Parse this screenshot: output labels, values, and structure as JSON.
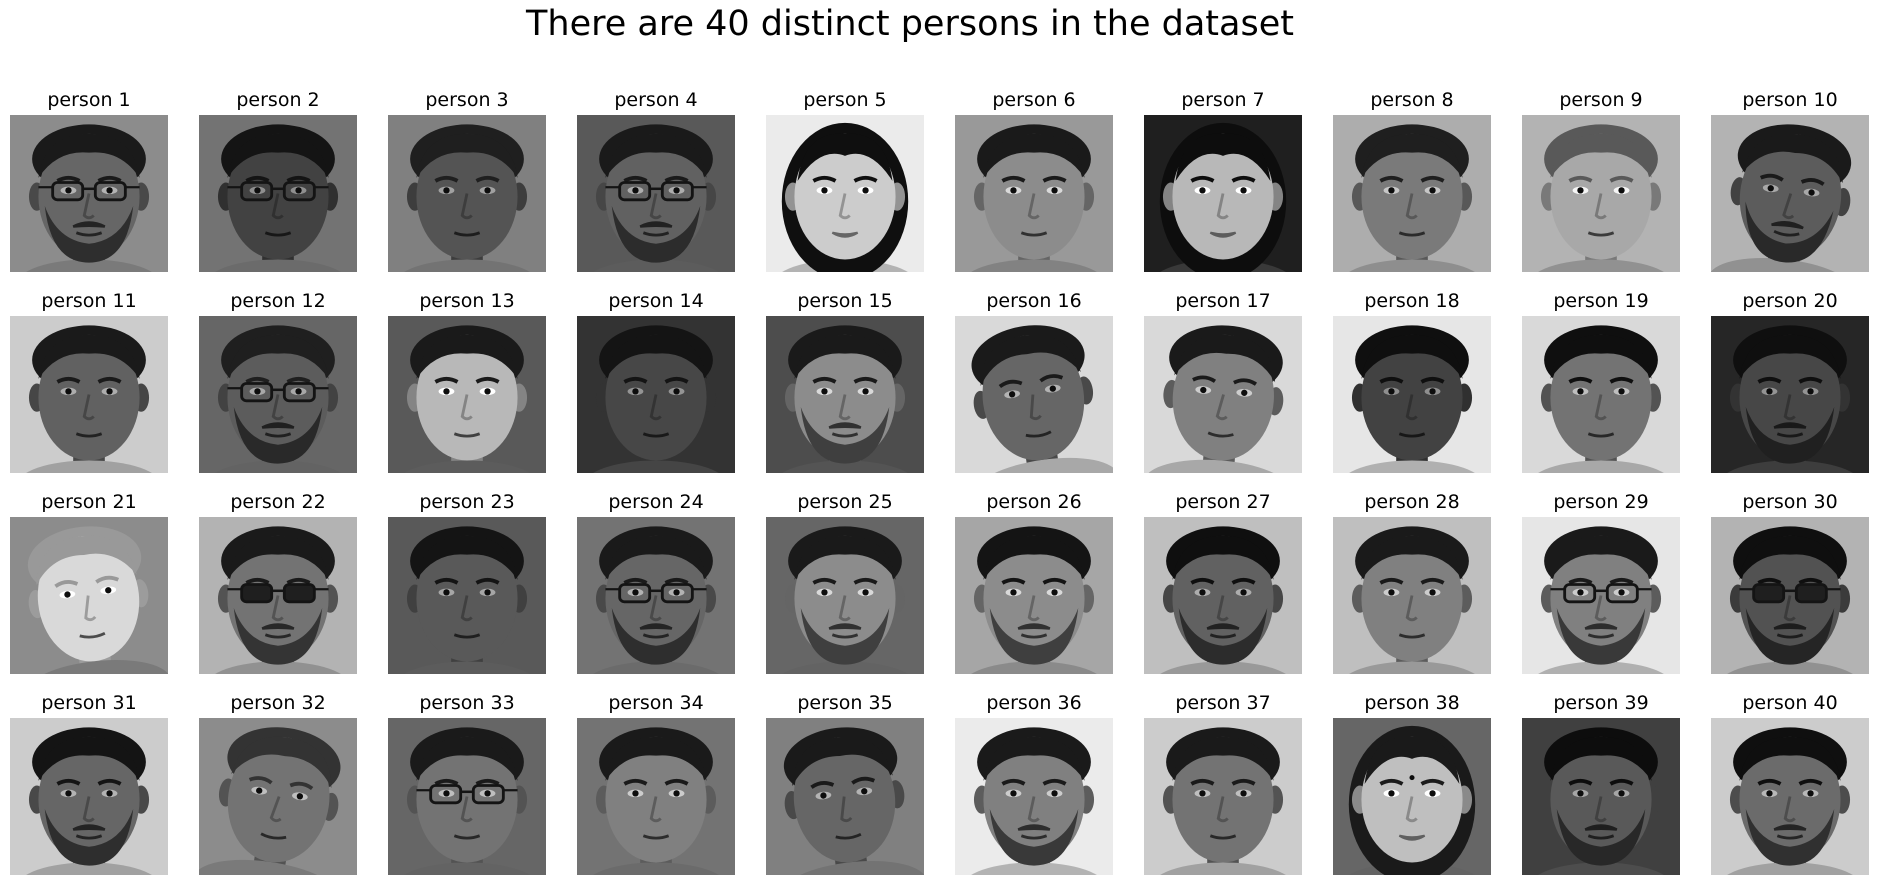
{
  "title": "There are 40 distinct persons in the dataset",
  "grid": {
    "rows": 4,
    "cols": 10
  },
  "persons": [
    {
      "label": "person 1",
      "bg": 0.55,
      "skin": 0.4,
      "hair": 0.1,
      "glasses": true,
      "beard": true,
      "female": false,
      "tilt": 0,
      "accessory": "none"
    },
    {
      "label": "person 2",
      "bg": 0.45,
      "skin": 0.26,
      "hair": 0.08,
      "glasses": true,
      "beard": false,
      "female": false,
      "tilt": 0,
      "accessory": "none"
    },
    {
      "label": "person 3",
      "bg": 0.5,
      "skin": 0.33,
      "hair": 0.12,
      "glasses": false,
      "beard": false,
      "female": false,
      "tilt": 0,
      "accessory": "none"
    },
    {
      "label": "person 4",
      "bg": 0.35,
      "skin": 0.38,
      "hair": 0.1,
      "glasses": true,
      "beard": true,
      "female": false,
      "tilt": 0,
      "accessory": "none"
    },
    {
      "label": "person 5",
      "bg": 0.92,
      "skin": 0.8,
      "hair": 0.06,
      "glasses": false,
      "beard": false,
      "female": true,
      "tilt": 0,
      "accessory": "none"
    },
    {
      "label": "person 6",
      "bg": 0.6,
      "skin": 0.55,
      "hair": 0.1,
      "glasses": false,
      "beard": false,
      "female": false,
      "tilt": 0,
      "accessory": "none"
    },
    {
      "label": "person 7",
      "bg": 0.12,
      "skin": 0.72,
      "hair": 0.05,
      "glasses": false,
      "beard": false,
      "female": true,
      "tilt": 0,
      "accessory": "none"
    },
    {
      "label": "person 8",
      "bg": 0.68,
      "skin": 0.48,
      "hair": 0.12,
      "glasses": false,
      "beard": false,
      "female": false,
      "tilt": 0,
      "accessory": "none"
    },
    {
      "label": "person 9",
      "bg": 0.7,
      "skin": 0.66,
      "hair": 0.35,
      "glasses": false,
      "beard": false,
      "female": false,
      "tilt": 0,
      "accessory": "none"
    },
    {
      "label": "person 10",
      "bg": 0.7,
      "skin": 0.36,
      "hair": 0.1,
      "glasses": false,
      "beard": true,
      "female": false,
      "tilt": 6,
      "accessory": "none"
    },
    {
      "label": "person 11",
      "bg": 0.8,
      "skin": 0.38,
      "hair": 0.1,
      "glasses": false,
      "beard": false,
      "female": false,
      "tilt": 0,
      "accessory": "none"
    },
    {
      "label": "person 12",
      "bg": 0.4,
      "skin": 0.36,
      "hair": 0.12,
      "glasses": true,
      "beard": true,
      "female": false,
      "tilt": 0,
      "accessory": "none"
    },
    {
      "label": "person 13",
      "bg": 0.35,
      "skin": 0.72,
      "hair": 0.1,
      "glasses": false,
      "beard": false,
      "female": false,
      "tilt": 0,
      "accessory": "none"
    },
    {
      "label": "person 14",
      "bg": 0.2,
      "skin": 0.28,
      "hair": 0.08,
      "glasses": false,
      "beard": false,
      "female": false,
      "tilt": 0,
      "accessory": "none"
    },
    {
      "label": "person 15",
      "bg": 0.3,
      "skin": 0.55,
      "hair": 0.1,
      "glasses": false,
      "beard": true,
      "female": false,
      "tilt": 0,
      "accessory": "none"
    },
    {
      "label": "person 16",
      "bg": 0.85,
      "skin": 0.4,
      "hair": 0.1,
      "glasses": false,
      "beard": false,
      "female": false,
      "tilt": -8,
      "accessory": "none"
    },
    {
      "label": "person 17",
      "bg": 0.85,
      "skin": 0.5,
      "hair": 0.1,
      "glasses": false,
      "beard": false,
      "female": false,
      "tilt": 4,
      "accessory": "none"
    },
    {
      "label": "person 18",
      "bg": 0.9,
      "skin": 0.26,
      "hair": 0.06,
      "glasses": false,
      "beard": false,
      "female": false,
      "tilt": 0,
      "accessory": "none"
    },
    {
      "label": "person 19",
      "bg": 0.85,
      "skin": 0.45,
      "hair": 0.06,
      "glasses": false,
      "beard": false,
      "female": false,
      "tilt": 0,
      "accessory": "none"
    },
    {
      "label": "person 20",
      "bg": 0.15,
      "skin": 0.28,
      "hair": 0.06,
      "glasses": false,
      "beard": true,
      "female": false,
      "tilt": 0,
      "accessory": "none"
    },
    {
      "label": "person 21",
      "bg": 0.55,
      "skin": 0.85,
      "hair": 0.6,
      "glasses": false,
      "beard": false,
      "female": false,
      "tilt": -6,
      "accessory": "none"
    },
    {
      "label": "person 22",
      "bg": 0.7,
      "skin": 0.45,
      "hair": 0.1,
      "glasses": true,
      "beard": true,
      "female": false,
      "tilt": 0,
      "accessory": "sunglasses"
    },
    {
      "label": "person 23",
      "bg": 0.35,
      "skin": 0.35,
      "hair": 0.08,
      "glasses": false,
      "beard": false,
      "female": false,
      "tilt": 0,
      "accessory": "none"
    },
    {
      "label": "person 24",
      "bg": 0.45,
      "skin": 0.4,
      "hair": 0.1,
      "glasses": true,
      "beard": true,
      "female": false,
      "tilt": 0,
      "accessory": "none"
    },
    {
      "label": "person 25",
      "bg": 0.4,
      "skin": 0.55,
      "hair": 0.1,
      "glasses": false,
      "beard": true,
      "female": false,
      "tilt": 0,
      "accessory": "none"
    },
    {
      "label": "person 26",
      "bg": 0.65,
      "skin": 0.55,
      "hair": 0.08,
      "glasses": false,
      "beard": true,
      "female": false,
      "tilt": 0,
      "accessory": "none"
    },
    {
      "label": "person 27",
      "bg": 0.75,
      "skin": 0.38,
      "hair": 0.06,
      "glasses": false,
      "beard": true,
      "female": false,
      "tilt": 0,
      "accessory": "none"
    },
    {
      "label": "person 28",
      "bg": 0.75,
      "skin": 0.5,
      "hair": 0.1,
      "glasses": false,
      "beard": false,
      "female": false,
      "tilt": 0,
      "accessory": "none"
    },
    {
      "label": "person 29",
      "bg": 0.9,
      "skin": 0.5,
      "hair": 0.1,
      "glasses": true,
      "beard": true,
      "female": false,
      "tilt": 0,
      "accessory": "none"
    },
    {
      "label": "person 30",
      "bg": 0.7,
      "skin": 0.32,
      "hair": 0.06,
      "glasses": true,
      "beard": true,
      "female": false,
      "tilt": 0,
      "accessory": "sunglasses"
    },
    {
      "label": "person 31",
      "bg": 0.8,
      "skin": 0.4,
      "hair": 0.08,
      "glasses": false,
      "beard": true,
      "female": false,
      "tilt": 0,
      "accessory": "none"
    },
    {
      "label": "person 32",
      "bg": 0.55,
      "skin": 0.45,
      "hair": 0.2,
      "glasses": false,
      "beard": false,
      "female": false,
      "tilt": 8,
      "accessory": "none"
    },
    {
      "label": "person 33",
      "bg": 0.4,
      "skin": 0.45,
      "hair": 0.1,
      "glasses": true,
      "beard": false,
      "female": false,
      "tilt": 0,
      "accessory": "none"
    },
    {
      "label": "person 34",
      "bg": 0.45,
      "skin": 0.5,
      "hair": 0.1,
      "glasses": false,
      "beard": false,
      "female": false,
      "tilt": 0,
      "accessory": "none"
    },
    {
      "label": "person 35",
      "bg": 0.5,
      "skin": 0.4,
      "hair": 0.1,
      "glasses": false,
      "beard": false,
      "female": false,
      "tilt": -6,
      "accessory": "none"
    },
    {
      "label": "person 36",
      "bg": 0.92,
      "skin": 0.5,
      "hair": 0.1,
      "glasses": false,
      "beard": true,
      "female": false,
      "tilt": 0,
      "accessory": "none"
    },
    {
      "label": "person 37",
      "bg": 0.8,
      "skin": 0.45,
      "hair": 0.1,
      "glasses": false,
      "beard": false,
      "female": false,
      "tilt": 0,
      "accessory": "none"
    },
    {
      "label": "person 38",
      "bg": 0.4,
      "skin": 0.75,
      "hair": 0.1,
      "glasses": false,
      "beard": false,
      "female": true,
      "tilt": 0,
      "accessory": "bindi"
    },
    {
      "label": "person 39",
      "bg": 0.25,
      "skin": 0.35,
      "hair": 0.05,
      "glasses": false,
      "beard": true,
      "female": false,
      "tilt": 0,
      "accessory": "none"
    },
    {
      "label": "person 40",
      "bg": 0.8,
      "skin": 0.42,
      "hair": 0.06,
      "glasses": false,
      "beard": true,
      "female": false,
      "tilt": 0,
      "accessory": "none"
    }
  ]
}
